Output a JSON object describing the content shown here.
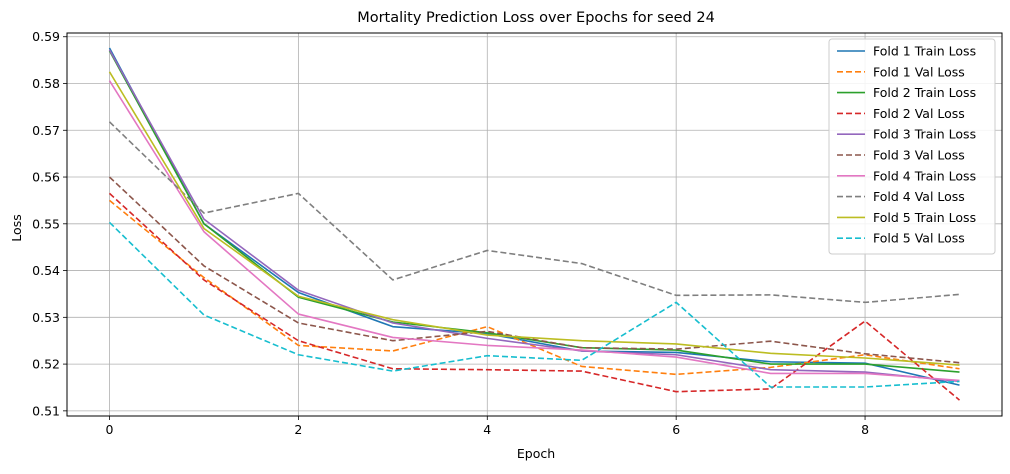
{
  "chart_data": {
    "type": "line",
    "title": "Mortality Prediction Loss over Epochs for seed 24",
    "xlabel": "Epoch",
    "ylabel": "Loss",
    "xlim": [
      -0.45,
      9.45
    ],
    "ylim": [
      0.5089,
      0.5908
    ],
    "xticks": [
      0,
      2,
      4,
      6,
      8
    ],
    "yticks": [
      0.51,
      0.52,
      0.53,
      0.54,
      0.55,
      0.56,
      0.57,
      0.58,
      0.59
    ],
    "grid": true,
    "legend_position": "top-right",
    "x": [
      0,
      1,
      2,
      3,
      4,
      5,
      6,
      7,
      8,
      9
    ],
    "series": [
      {
        "name": "Fold 1 Train Loss",
        "color": "#1f77b4",
        "dash": "solid",
        "values": [
          0.5876,
          0.55,
          0.5353,
          0.528,
          0.5265,
          0.5228,
          0.5225,
          0.5205,
          0.5202,
          0.5155
        ]
      },
      {
        "name": "Fold 1 Val Loss",
        "color": "#ff7f0e",
        "dash": "dashed",
        "values": [
          0.555,
          0.5385,
          0.524,
          0.5228,
          0.528,
          0.5195,
          0.5178,
          0.5193,
          0.522,
          0.519
        ]
      },
      {
        "name": "Fold 2 Train Loss",
        "color": "#2ca02c",
        "dash": "solid",
        "values": [
          0.587,
          0.55,
          0.5343,
          0.529,
          0.5267,
          0.5235,
          0.523,
          0.52,
          0.52,
          0.5183
        ]
      },
      {
        "name": "Fold 2 Val Loss",
        "color": "#d62728",
        "dash": "dashed",
        "values": [
          0.5565,
          0.538,
          0.525,
          0.519,
          0.5188,
          0.5185,
          0.5141,
          0.5147,
          0.5292,
          0.5123
        ]
      },
      {
        "name": "Fold 3 Train Loss",
        "color": "#9467bd",
        "dash": "solid",
        "values": [
          0.5872,
          0.551,
          0.5358,
          0.5288,
          0.5255,
          0.5228,
          0.522,
          0.5188,
          0.5183,
          0.5163
        ]
      },
      {
        "name": "Fold 3 Val Loss",
        "color": "#8c564b",
        "dash": "dashed",
        "values": [
          0.56,
          0.541,
          0.5288,
          0.525,
          0.527,
          0.5235,
          0.5232,
          0.5249,
          0.5222,
          0.5203
        ]
      },
      {
        "name": "Fold 4 Train Loss",
        "color": "#e377c2",
        "dash": "solid",
        "values": [
          0.5806,
          0.5483,
          0.5307,
          0.5257,
          0.524,
          0.523,
          0.5215,
          0.518,
          0.518,
          0.5165
        ]
      },
      {
        "name": "Fold 4 Val Loss",
        "color": "#7f7f7f",
        "dash": "dashed",
        "values": [
          0.5718,
          0.5523,
          0.5565,
          0.538,
          0.5443,
          0.5415,
          0.5347,
          0.5348,
          0.5332,
          0.5349
        ]
      },
      {
        "name": "Fold 5 Train Loss",
        "color": "#bcbd22",
        "dash": "solid",
        "values": [
          0.5825,
          0.549,
          0.5345,
          0.5295,
          0.5262,
          0.525,
          0.5243,
          0.5223,
          0.5213,
          0.5198
        ]
      },
      {
        "name": "Fold 5 Val Loss",
        "color": "#17becf",
        "dash": "dashed",
        "values": [
          0.5503,
          0.5305,
          0.522,
          0.5185,
          0.5218,
          0.5208,
          0.5332,
          0.5151,
          0.5151,
          0.5163
        ]
      }
    ]
  }
}
